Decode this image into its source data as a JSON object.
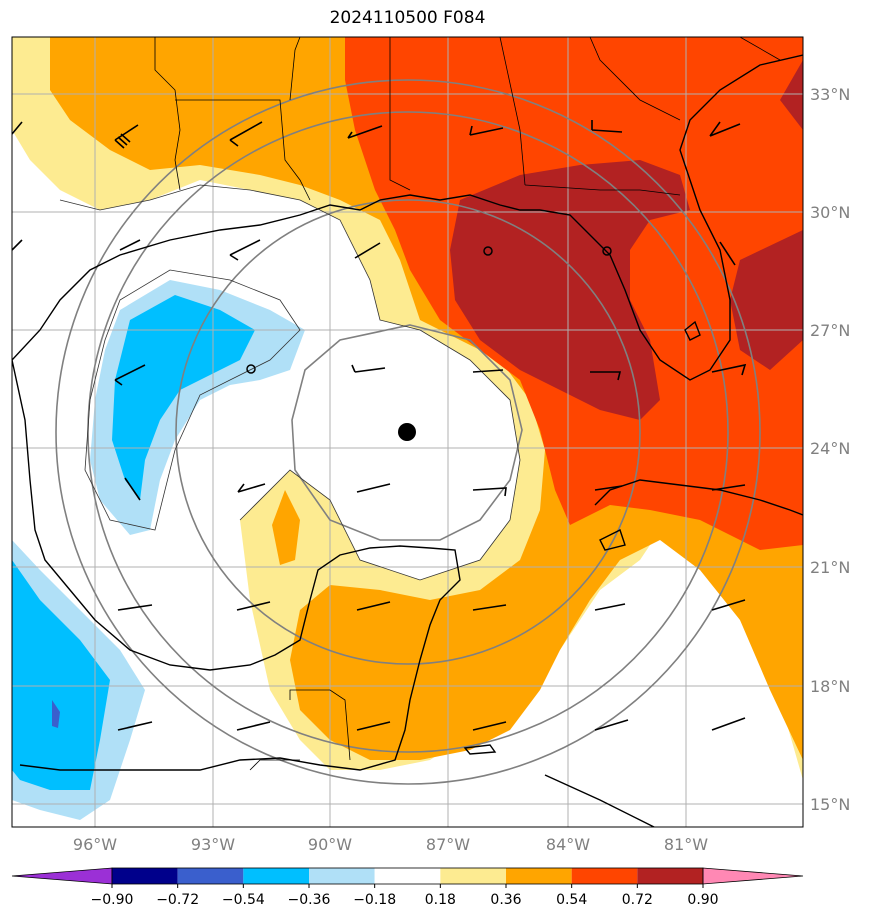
{
  "title": "2024110500 F084",
  "lat_labels": [
    "33°N",
    "30°N",
    "27°N",
    "24°N",
    "21°N",
    "18°N",
    "15°N"
  ],
  "lon_labels": [
    "96°W",
    "93°W",
    "90°W",
    "87°W",
    "84°W",
    "81°W"
  ],
  "colorbar": {
    "ticks": [
      "−0.90",
      "−0.72",
      "−0.54",
      "−0.36",
      "−0.18",
      "0.18",
      "0.36",
      "0.54",
      "0.72",
      "0.90"
    ],
    "colors": [
      "#9b30d6",
      "#00008b",
      "#3a5fcd",
      "#00bfff",
      "#b0e0f7",
      "#ffffff",
      "#fdeb91",
      "#ffa500",
      "#ff4500",
      "#b22222",
      "#ff88b4"
    ]
  },
  "storm_center": {
    "lon": -88.0,
    "lat": 24.4
  }
}
